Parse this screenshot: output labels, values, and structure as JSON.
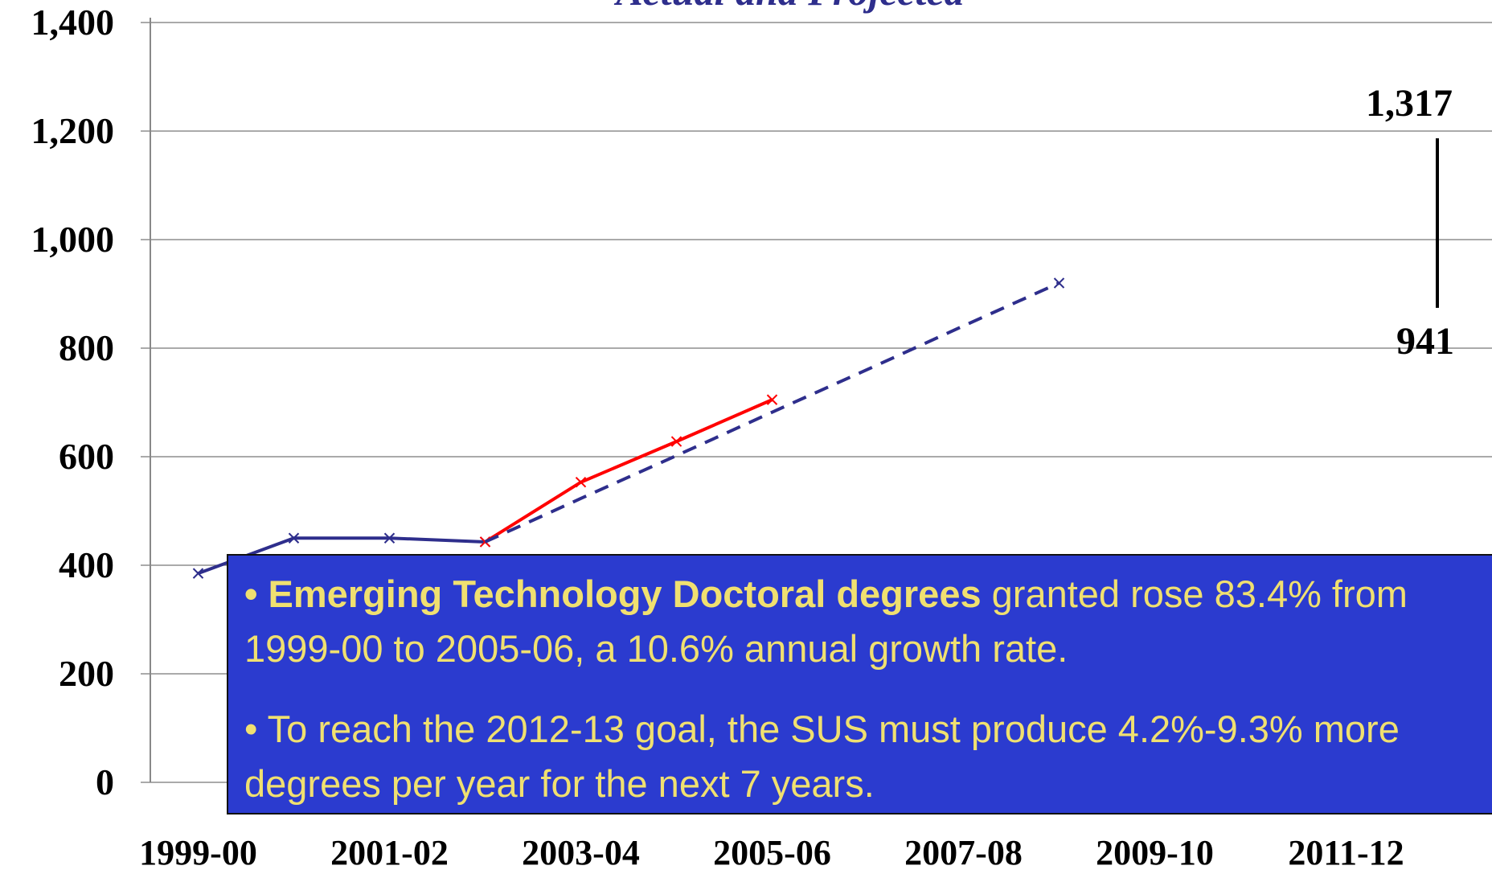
{
  "chart_data": {
    "type": "line",
    "title": "Actual and Projected",
    "categories": [
      "1999-00",
      null,
      "2001-02",
      null,
      "2003-04",
      null,
      "2005-06",
      null,
      "2007-08",
      null,
      "2009-10",
      null,
      "2011-12",
      null
    ],
    "series": [
      {
        "color": "#2e2e8c",
        "dash": false,
        "values": [
          385,
          450,
          450,
          443,
          null,
          null,
          null,
          null,
          null,
          null,
          null,
          null,
          null,
          null
        ]
      },
      {
        "color": "#ff0000",
        "dash": false,
        "values": [
          null,
          null,
          null,
          443,
          553,
          628,
          705,
          null,
          null,
          null,
          null,
          null,
          null,
          null
        ]
      },
      {
        "color": "#2e2e8c",
        "dash": true,
        "values": [
          null,
          null,
          null,
          443,
          523,
          602,
          682,
          761,
          841,
          920,
          null,
          null,
          null,
          null
        ]
      }
    ],
    "ylim": [
      0,
      1400
    ],
    "yticks": [
      0,
      200,
      400,
      600,
      800,
      {
        "value": 1000,
        "label": "1,000"
      },
      {
        "value": 1200,
        "label": "1,200"
      },
      {
        "value": 1400,
        "label": "1,400"
      }
    ],
    "grid": true,
    "goal_range": {
      "low": 941,
      "high": 1317,
      "high_label": "1,317"
    },
    "callout": {
      "bullet1_bold": "• Emerging Technology Doctoral degrees",
      "bullet1_rest": " granted rose 83.4% from 1999-00 to 2005-06, a 10.6% annual growth rate.",
      "bullet2": "• To reach the 2012-13 goal, the SUS must produce 4.2%-9.3% more degrees per year for the next 7 years."
    }
  }
}
